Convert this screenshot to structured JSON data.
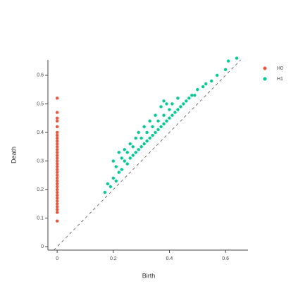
{
  "chart_data": {
    "type": "scatter",
    "x_label": "Birth",
    "y_label": "Death",
    "xlim": [
      -0.033,
      0.68
    ],
    "ylim": [
      -0.012,
      0.654
    ],
    "xticks": [
      0,
      0.2,
      0.4,
      0.6
    ],
    "yticks": [
      0,
      0.1,
      0.2,
      0.3,
      0.4,
      0.5,
      0.6
    ],
    "diagonal": true,
    "legend": "upper right",
    "series": [
      {
        "name": "H0",
        "color": "#ef553b",
        "x": [
          0,
          0,
          0,
          0,
          0,
          0,
          0,
          0,
          0,
          0,
          0,
          0,
          0,
          0,
          0,
          0,
          0,
          0,
          0,
          0,
          0,
          0,
          0,
          0,
          0,
          0,
          0,
          0,
          0,
          0,
          0,
          0,
          0,
          0,
          0
        ],
        "y": [
          0.09,
          0.12,
          0.13,
          0.14,
          0.15,
          0.16,
          0.17,
          0.18,
          0.19,
          0.2,
          0.21,
          0.22,
          0.23,
          0.24,
          0.25,
          0.26,
          0.27,
          0.28,
          0.29,
          0.3,
          0.31,
          0.32,
          0.33,
          0.34,
          0.35,
          0.36,
          0.37,
          0.38,
          0.39,
          0.4,
          0.42,
          0.44,
          0.45,
          0.47,
          0.52
        ]
      },
      {
        "name": "H1",
        "color": "#00cc96",
        "x": [
          0.17,
          0.18,
          0.19,
          0.2,
          0.21,
          0.21,
          0.22,
          0.23,
          0.23,
          0.24,
          0.24,
          0.25,
          0.25,
          0.26,
          0.26,
          0.27,
          0.27,
          0.28,
          0.28,
          0.29,
          0.29,
          0.3,
          0.3,
          0.31,
          0.31,
          0.32,
          0.32,
          0.33,
          0.33,
          0.34,
          0.34,
          0.35,
          0.35,
          0.36,
          0.36,
          0.37,
          0.37,
          0.38,
          0.38,
          0.39,
          0.39,
          0.4,
          0.4,
          0.41,
          0.41,
          0.42,
          0.43,
          0.43,
          0.44,
          0.45,
          0.46,
          0.47,
          0.48,
          0.49,
          0.5,
          0.52,
          0.53,
          0.55,
          0.57,
          0.6,
          0.61,
          0.64,
          0.2,
          0.22,
          0.38
        ],
        "y": [
          0.19,
          0.22,
          0.21,
          0.24,
          0.23,
          0.28,
          0.26,
          0.31,
          0.27,
          0.3,
          0.34,
          0.29,
          0.33,
          0.31,
          0.36,
          0.32,
          0.35,
          0.33,
          0.38,
          0.34,
          0.4,
          0.35,
          0.38,
          0.36,
          0.42,
          0.37,
          0.4,
          0.38,
          0.44,
          0.39,
          0.42,
          0.4,
          0.46,
          0.41,
          0.44,
          0.42,
          0.49,
          0.43,
          0.46,
          0.44,
          0.5,
          0.45,
          0.48,
          0.46,
          0.5,
          0.47,
          0.48,
          0.52,
          0.49,
          0.5,
          0.51,
          0.52,
          0.53,
          0.53,
          0.55,
          0.56,
          0.57,
          0.58,
          0.6,
          0.62,
          0.65,
          0.66,
          0.3,
          0.33,
          0.51
        ]
      }
    ]
  }
}
